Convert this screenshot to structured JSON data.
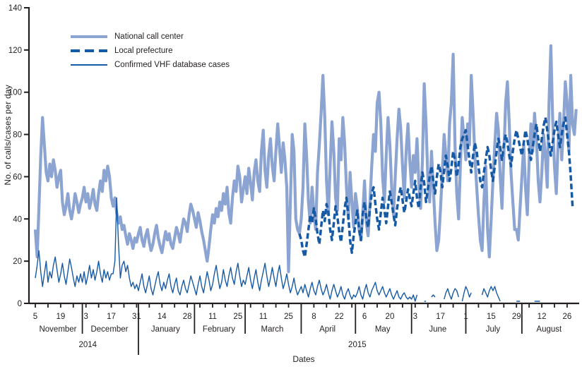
{
  "colors": {
    "national": "#8CA4D2",
    "dark_blue": "#1659A5",
    "axis": "#231F20",
    "text": "#231F20",
    "background": "#FFFFFF"
  },
  "chart_data": {
    "type": "line",
    "title": "",
    "xlabel": "Dates",
    "ylabel": "No. of calls/cases per day",
    "ylim": [
      0,
      140
    ],
    "yticks": [
      0,
      20,
      40,
      60,
      80,
      100,
      120,
      140
    ],
    "grid": false,
    "legend_position": "top-left",
    "x_unit": "day index from Nov 5, 2014",
    "x_range": [
      0,
      299
    ],
    "axis_color": "#231F20",
    "text_color": "#231F20",
    "xticks": [
      {
        "day": 0,
        "label": "5"
      },
      {
        "day": 14,
        "label": "19"
      },
      {
        "day": 28,
        "label": "3"
      },
      {
        "day": 42,
        "label": "17"
      },
      {
        "day": 56,
        "label": "31"
      },
      {
        "day": 70,
        "label": "14"
      },
      {
        "day": 84,
        "label": "28"
      },
      {
        "day": 98,
        "label": "11"
      },
      {
        "day": 112,
        "label": "25"
      },
      {
        "day": 126,
        "label": "11"
      },
      {
        "day": 140,
        "label": "25"
      },
      {
        "day": 154,
        "label": "8"
      },
      {
        "day": 168,
        "label": "22"
      },
      {
        "day": 182,
        "label": "6"
      },
      {
        "day": 196,
        "label": "20"
      },
      {
        "day": 210,
        "label": "3"
      },
      {
        "day": 224,
        "label": "17"
      },
      {
        "day": 238,
        "label": "1"
      },
      {
        "day": 252,
        "label": "15"
      },
      {
        "day": 266,
        "label": "29"
      },
      {
        "day": 280,
        "label": "12"
      },
      {
        "day": 294,
        "label": "26"
      }
    ],
    "minor_tick_step_days": 7,
    "months": [
      {
        "name": "November",
        "start_day": 0,
        "end_day": 25,
        "year_break": false
      },
      {
        "name": "December",
        "start_day": 26,
        "end_day": 56,
        "year_break": false
      },
      {
        "name": "January",
        "start_day": 57,
        "end_day": 87,
        "year_break": true
      },
      {
        "name": "February",
        "start_day": 88,
        "end_day": 115,
        "year_break": false
      },
      {
        "name": "March",
        "start_day": 116,
        "end_day": 146,
        "year_break": false
      },
      {
        "name": "April",
        "start_day": 147,
        "end_day": 176,
        "year_break": false
      },
      {
        "name": "May",
        "start_day": 177,
        "end_day": 207,
        "year_break": false
      },
      {
        "name": "June",
        "start_day": 208,
        "end_day": 237,
        "year_break": false
      },
      {
        "name": "July",
        "start_day": 238,
        "end_day": 268,
        "year_break": false
      },
      {
        "name": "August",
        "start_day": 269,
        "end_day": 299,
        "year_break": false
      }
    ],
    "years": [
      {
        "label": "2014",
        "center_day": 29
      },
      {
        "label": "2015",
        "center_day": 178
      }
    ],
    "series": [
      {
        "name": "National call center",
        "color": "#8CA4D2",
        "width": 4.2,
        "dash": null,
        "start_day": 0,
        "values": [
          35,
          22,
          45,
          70,
          88,
          75,
          62,
          58,
          66,
          60,
          68,
          63,
          55,
          60,
          63,
          48,
          42,
          46,
          52,
          44,
          40,
          45,
          52,
          48,
          43,
          47,
          50,
          55,
          48,
          52,
          45,
          49,
          54,
          47,
          44,
          52,
          58,
          53,
          63,
          58,
          65,
          60,
          50,
          46,
          50,
          43,
          38,
          41,
          35,
          37,
          32,
          28,
          33,
          30,
          26,
          31,
          29,
          33,
          36,
          30,
          27,
          32,
          35,
          29,
          25,
          28,
          33,
          37,
          31,
          27,
          24,
          29,
          34,
          30,
          33,
          28,
          26,
          31,
          36,
          33,
          29,
          35,
          40,
          38,
          34,
          42,
          47,
          44,
          40,
          36,
          43,
          39,
          34,
          30,
          25,
          20,
          27,
          35,
          42,
          38,
          45,
          41,
          48,
          44,
          52,
          47,
          55,
          43,
          38,
          50,
          58,
          53,
          65,
          60,
          48,
          54,
          60,
          52,
          64,
          57,
          49,
          62,
          68,
          58,
          53,
          72,
          82,
          63,
          55,
          70,
          78,
          65,
          58,
          72,
          85,
          74,
          62,
          76,
          68,
          55,
          15,
          48,
          80,
          72,
          40,
          35,
          33,
          40,
          55,
          85,
          70,
          48,
          38,
          55,
          43,
          35,
          62,
          75,
          90,
          108,
          88,
          58,
          42,
          65,
          86,
          72,
          50,
          44,
          78,
          68,
          88,
          76,
          55,
          40,
          62,
          48,
          36,
          52,
          45,
          35,
          30,
          42,
          58,
          38,
          32,
          48,
          65,
          80,
          72,
          95,
          100,
          85,
          60,
          48,
          70,
          88,
          75,
          55,
          42,
          60,
          78,
          92,
          83,
          65,
          50,
          72,
          85,
          68,
          55,
          70,
          62,
          78,
          58,
          45,
          68,
          104,
          85,
          60,
          48,
          72,
          55,
          38,
          25,
          30,
          45,
          62,
          80,
          70,
          58,
          85,
          95,
          118,
          75,
          52,
          40,
          65,
          88,
          78,
          68,
          85,
          75,
          108,
          90,
          70,
          55,
          42,
          30,
          25,
          48,
          65,
          35,
          22,
          40,
          58,
          75,
          90,
          82,
          60,
          45,
          70,
          95,
          105,
          85,
          62,
          48,
          35,
          35,
          30,
          45,
          60,
          75,
          55,
          42,
          68,
          85,
          72,
          90,
          78,
          58,
          48,
          62,
          80,
          70,
          55,
          95,
          122,
          88,
          65,
          52,
          75,
          90,
          68,
          85,
          105,
          95,
          72,
          108,
          85,
          80,
          92
        ]
      },
      {
        "name": "Local prefecture",
        "color": "#1659A5",
        "width": 3.5,
        "dash": "8 4",
        "start_day": 146,
        "values": [
          33,
          30,
          25,
          22,
          28,
          35,
          42,
          38,
          45,
          40,
          33,
          28,
          36,
          44,
          39,
          47,
          43,
          35,
          30,
          38,
          46,
          41,
          34,
          29,
          37,
          45,
          50,
          42,
          30,
          24,
          32,
          38,
          44,
          35,
          30,
          42,
          48,
          40,
          36,
          45,
          52,
          55,
          47,
          40,
          35,
          43,
          50,
          44,
          38,
          46,
          53,
          48,
          42,
          37,
          45,
          51,
          55,
          49,
          43,
          48,
          54,
          50,
          46,
          52,
          58,
          50,
          45,
          55,
          62,
          57,
          48,
          54,
          60,
          65,
          58,
          52,
          60,
          66,
          62,
          55,
          63,
          70,
          65,
          58,
          64,
          72,
          68,
          60,
          66,
          74,
          78,
          80,
          82,
          75,
          68,
          62,
          70,
          76,
          72,
          65,
          58,
          55,
          62,
          68,
          74,
          70,
          63,
          58,
          65,
          72,
          78,
          74,
          68,
          75,
          80,
          76,
          70,
          65,
          72,
          78,
          82,
          78,
          74,
          70,
          76,
          82,
          78,
          72,
          68,
          74,
          80,
          85,
          78,
          72,
          78,
          84,
          88,
          82,
          76,
          70,
          76,
          82,
          86,
          80,
          74,
          80,
          85,
          88,
          80,
          72,
          60,
          46
        ]
      },
      {
        "name": "Confirmed VHF database cases",
        "color": "#1659A5",
        "width": 1.4,
        "dash": null,
        "start_day": 0,
        "values": [
          12,
          18,
          25,
          15,
          8,
          14,
          20,
          10,
          15,
          12,
          18,
          22,
          16,
          10,
          14,
          19,
          13,
          9,
          15,
          21,
          17,
          12,
          8,
          13,
          10,
          14,
          10,
          15,
          9,
          13,
          18,
          12,
          16,
          11,
          15,
          20,
          14,
          10,
          16,
          12,
          15,
          11,
          14,
          14,
          20,
          50,
          28,
          12,
          18,
          20,
          15,
          18,
          12,
          8,
          10,
          7,
          9,
          6,
          10,
          14,
          8,
          5,
          9,
          13,
          7,
          4,
          8,
          12,
          15,
          9,
          6,
          10,
          7,
          11,
          14,
          8,
          5,
          9,
          12,
          6,
          4,
          8,
          11,
          7,
          5,
          9,
          13,
          10,
          7,
          4,
          9,
          13,
          8,
          5,
          10,
          15,
          11,
          6,
          9,
          14,
          18,
          12,
          7,
          10,
          16,
          11,
          8,
          13,
          17,
          12,
          9,
          15,
          19,
          13,
          8,
          11,
          9,
          13,
          17,
          11,
          7,
          12,
          16,
          10,
          6,
          11,
          15,
          19,
          13,
          8,
          12,
          17,
          12,
          8,
          14,
          18,
          12,
          7,
          10,
          14,
          9,
          5,
          8,
          12,
          7,
          4,
          6,
          8,
          5,
          9,
          6,
          3,
          7,
          10,
          6,
          4,
          8,
          11,
          7,
          4,
          6,
          9,
          5,
          2,
          6,
          9,
          6,
          3,
          5,
          8,
          4,
          2,
          5,
          7,
          4,
          2,
          4,
          3,
          5,
          8,
          4,
          2,
          6,
          9,
          5,
          3,
          6,
          8,
          10,
          6,
          4,
          6,
          8,
          5,
          3,
          5,
          7,
          4,
          2,
          4,
          6,
          3,
          2,
          4,
          5,
          3,
          2,
          3,
          2,
          4,
          1,
          4,
          null,
          null,
          null,
          1,
          1,
          null,
          null,
          3,
          4,
          3,
          null,
          null,
          null,
          null,
          2,
          5,
          7,
          4,
          2,
          5,
          7,
          6,
          3,
          null,
          1,
          5,
          8,
          6,
          3,
          5,
          null,
          null,
          null,
          null,
          null,
          4,
          7,
          5,
          3,
          6,
          8,
          6,
          8,
          5,
          3,
          1,
          null,
          null,
          null,
          null,
          null,
          null,
          null,
          null,
          1,
          1,
          1,
          null,
          null,
          null,
          null,
          null,
          null,
          null,
          1,
          1,
          1,
          1,
          null,
          null,
          null,
          null,
          null,
          null,
          null,
          null,
          null,
          null,
          null,
          null,
          null,
          null,
          null,
          null,
          null,
          null
        ]
      }
    ]
  },
  "legend": {
    "items": [
      {
        "label": "National call center"
      },
      {
        "label": "Local prefecture"
      },
      {
        "label": "Confirmed VHF database cases"
      }
    ]
  }
}
